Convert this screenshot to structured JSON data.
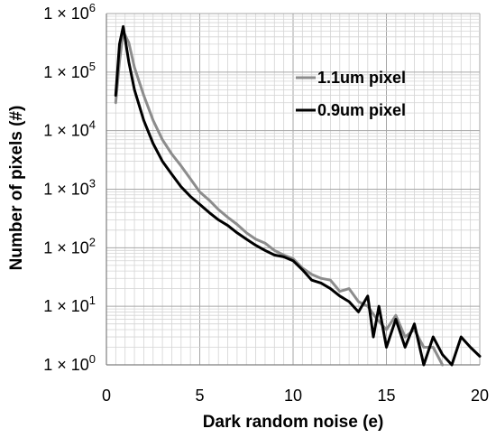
{
  "chart_data": {
    "type": "line",
    "title": "",
    "xlabel": "Dark random noise (e)",
    "ylabel": "Number of pixels (#)",
    "xlim": [
      0,
      20
    ],
    "ylim": [
      1,
      1000000
    ],
    "y_scale": "log",
    "grid": true,
    "legend_position": "top-right",
    "x_ticks": [
      0,
      5,
      10,
      15,
      20
    ],
    "y_ticks": [
      {
        "value": 1,
        "mantissa": "1 × 10",
        "exp": "0"
      },
      {
        "value": 10,
        "mantissa": "1 × 10",
        "exp": "1"
      },
      {
        "value": 100,
        "mantissa": "1 × 10",
        "exp": "2"
      },
      {
        "value": 1000,
        "mantissa": "1 × 10",
        "exp": "3"
      },
      {
        "value": 10000,
        "mantissa": "1 × 10",
        "exp": "4"
      },
      {
        "value": 100000,
        "mantissa": "1 × 10",
        "exp": "5"
      },
      {
        "value": 1000000,
        "mantissa": "1 × 10",
        "exp": "6"
      }
    ],
    "series": [
      {
        "name": "1.1um pixel",
        "color": "#8c8c8c",
        "points": [
          [
            0.5,
            30000
          ],
          [
            0.7,
            150000
          ],
          [
            0.9,
            500000
          ],
          [
            1.2,
            320000
          ],
          [
            1.5,
            120000
          ],
          [
            2.0,
            40000
          ],
          [
            2.5,
            15000
          ],
          [
            3.0,
            7000
          ],
          [
            3.5,
            4000
          ],
          [
            4.0,
            2500
          ],
          [
            4.5,
            1500
          ],
          [
            5.0,
            900
          ],
          [
            5.5,
            650
          ],
          [
            6.0,
            450
          ],
          [
            6.5,
            330
          ],
          [
            7.0,
            250
          ],
          [
            7.5,
            180
          ],
          [
            8.0,
            140
          ],
          [
            8.5,
            120
          ],
          [
            9.0,
            90
          ],
          [
            9.5,
            75
          ],
          [
            10.0,
            65
          ],
          [
            10.5,
            45
          ],
          [
            11.0,
            35
          ],
          [
            11.5,
            30
          ],
          [
            12.0,
            28
          ],
          [
            12.5,
            18
          ],
          [
            13.0,
            20
          ],
          [
            13.5,
            12
          ],
          [
            14.0,
            10
          ],
          [
            14.5,
            6
          ],
          [
            15.0,
            4
          ],
          [
            15.5,
            7
          ],
          [
            16.0,
            3
          ],
          [
            16.5,
            4
          ],
          [
            17.0,
            2
          ],
          [
            17.5,
            2
          ],
          [
            18.0,
            1
          ]
        ]
      },
      {
        "name": "0.9um pixel",
        "color": "#000000",
        "points": [
          [
            0.5,
            40000
          ],
          [
            0.7,
            300000
          ],
          [
            0.9,
            600000
          ],
          [
            1.2,
            150000
          ],
          [
            1.5,
            50000
          ],
          [
            2.0,
            15000
          ],
          [
            2.5,
            6000
          ],
          [
            3.0,
            3000
          ],
          [
            3.5,
            1800
          ],
          [
            4.0,
            1100
          ],
          [
            4.5,
            750
          ],
          [
            5.0,
            550
          ],
          [
            5.5,
            400
          ],
          [
            6.0,
            300
          ],
          [
            6.5,
            240
          ],
          [
            7.0,
            180
          ],
          [
            7.5,
            140
          ],
          [
            8.0,
            110
          ],
          [
            8.5,
            90
          ],
          [
            9.0,
            75
          ],
          [
            9.5,
            70
          ],
          [
            10.0,
            60
          ],
          [
            10.5,
            42
          ],
          [
            11.0,
            28
          ],
          [
            11.5,
            25
          ],
          [
            12.0,
            20
          ],
          [
            12.5,
            15
          ],
          [
            13.0,
            12
          ],
          [
            13.5,
            8
          ],
          [
            14.0,
            15
          ],
          [
            14.3,
            3
          ],
          [
            14.6,
            10
          ],
          [
            15.0,
            2
          ],
          [
            15.5,
            6
          ],
          [
            16.0,
            2
          ],
          [
            16.5,
            5
          ],
          [
            17.0,
            1
          ],
          [
            17.5,
            3
          ],
          [
            18.0,
            1.5
          ],
          [
            18.5,
            1
          ],
          [
            19.0,
            3
          ],
          [
            19.5,
            2
          ],
          [
            20.0,
            1.4
          ]
        ]
      }
    ]
  }
}
